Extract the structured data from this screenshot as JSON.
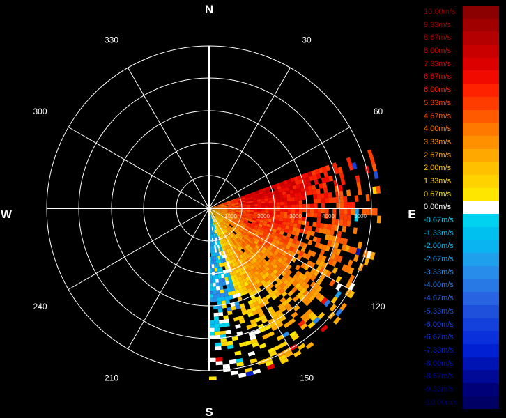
{
  "chart_data": {
    "type": "heatmap",
    "projection": "polar",
    "cardinal_labels": {
      "north": "N",
      "east": "E",
      "south": "S",
      "west": "W"
    },
    "angle_labels": [
      "30",
      "60",
      "120",
      "150",
      "210",
      "240",
      "300",
      "330"
    ],
    "range_labels": [
      "1000",
      "2000",
      "3000",
      "4000",
      "5000"
    ],
    "data_sector": {
      "from_bearing": 70,
      "to_bearing": 180,
      "max_range": 5000
    },
    "value_gradient": [
      {
        "range_fraction": 0.05,
        "value": 4.0
      },
      {
        "range_fraction": 0.25,
        "value": 8.0
      },
      {
        "range_fraction": 0.5,
        "value": 7.33
      },
      {
        "range_fraction": 0.8,
        "value": 6.0
      },
      {
        "range_fraction": 1.0,
        "value": 5.33
      }
    ],
    "colorbar": {
      "ticks": [
        "10.00m/s",
        "9.33m/s",
        "8.67m/s",
        "8.00m/s",
        "7.33m/s",
        "6.67m/s",
        "6.00m/s",
        "5.33m/s",
        "4.67m/s",
        "4.00m/s",
        "3.33m/s",
        "2.67m/s",
        "2.00m/s",
        "1.33m/s",
        "0.67m/s",
        "0.00m/s",
        "-0.67m/s",
        "-1.33m/s",
        "-2.00m/s",
        "-2.67m/s",
        "-3.33m/s",
        "-4.00m/s",
        "-4.67m/s",
        "-5.33m/s",
        "-6.00m/s",
        "-6.67m/s",
        "-7.33m/s",
        "-8.00m/s",
        "-8.67m/s",
        "-9.33m/s",
        "-10.00m/s"
      ],
      "colors": [
        "#8b0000",
        "#a00000",
        "#b40000",
        "#c80000",
        "#dc0000",
        "#f00a00",
        "#ff2200",
        "#ff3c00",
        "#ff5a00",
        "#ff7800",
        "#ff9000",
        "#ffa800",
        "#ffc000",
        "#ffd200",
        "#ffe600",
        "#ffffff",
        "#00d2f0",
        "#00c0f0",
        "#0ab4f0",
        "#1ea0ec",
        "#288cea",
        "#2878e6",
        "#2864e2",
        "#1e50dc",
        "#1440dc",
        "#0a30dc",
        "#0020d2",
        "#0014b4",
        "#000a96",
        "#000078",
        "#000064"
      ]
    }
  }
}
